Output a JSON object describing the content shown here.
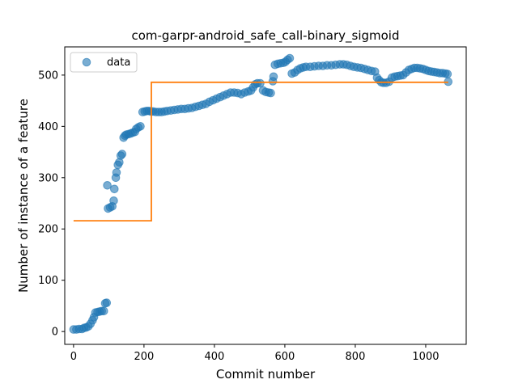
{
  "chart_data": {
    "type": "scatter",
    "title": "com-garpr-android_safe_call-binary_sigmoid",
    "xlabel": "Commit number",
    "ylabel": "Number of instance of a feature",
    "xlim": [
      -25,
      1115
    ],
    "ylim": [
      -25,
      555
    ],
    "xticks": [
      0,
      200,
      400,
      600,
      800,
      1000
    ],
    "yticks": [
      0,
      100,
      200,
      300,
      400,
      500
    ],
    "grid": false,
    "legend": {
      "placement": "top-left",
      "entries": [
        "data"
      ]
    },
    "colors": {
      "data": "#1f77b4",
      "fit": "#ff7f0e"
    },
    "series": [
      {
        "name": "data",
        "kind": "scatter",
        "points": [
          [
            0,
            4
          ],
          [
            8,
            4
          ],
          [
            16,
            5
          ],
          [
            24,
            5
          ],
          [
            30,
            7
          ],
          [
            36,
            8
          ],
          [
            42,
            10
          ],
          [
            48,
            15
          ],
          [
            54,
            22
          ],
          [
            58,
            28
          ],
          [
            62,
            37
          ],
          [
            68,
            38
          ],
          [
            74,
            39
          ],
          [
            80,
            40
          ],
          [
            86,
            40
          ],
          [
            90,
            55
          ],
          [
            94,
            56
          ],
          [
            96,
            285
          ],
          [
            98,
            240
          ],
          [
            104,
            242
          ],
          [
            110,
            244
          ],
          [
            114,
            255
          ],
          [
            116,
            278
          ],
          [
            120,
            300
          ],
          [
            122,
            310
          ],
          [
            126,
            325
          ],
          [
            130,
            330
          ],
          [
            134,
            343
          ],
          [
            138,
            346
          ],
          [
            142,
            378
          ],
          [
            146,
            382
          ],
          [
            150,
            384
          ],
          [
            156,
            385
          ],
          [
            162,
            386
          ],
          [
            168,
            388
          ],
          [
            174,
            389
          ],
          [
            178,
            395
          ],
          [
            184,
            398
          ],
          [
            190,
            400
          ],
          [
            196,
            428
          ],
          [
            202,
            429
          ],
          [
            208,
            430
          ],
          [
            214,
            430
          ],
          [
            220,
            429
          ],
          [
            226,
            429
          ],
          [
            234,
            428
          ],
          [
            242,
            428
          ],
          [
            250,
            428
          ],
          [
            258,
            429
          ],
          [
            266,
            430
          ],
          [
            276,
            431
          ],
          [
            286,
            432
          ],
          [
            296,
            433
          ],
          [
            306,
            434
          ],
          [
            316,
            434
          ],
          [
            326,
            435
          ],
          [
            336,
            436
          ],
          [
            346,
            438
          ],
          [
            356,
            440
          ],
          [
            366,
            442
          ],
          [
            376,
            444
          ],
          [
            386,
            448
          ],
          [
            396,
            451
          ],
          [
            406,
            454
          ],
          [
            416,
            457
          ],
          [
            426,
            460
          ],
          [
            436,
            463
          ],
          [
            446,
            466
          ],
          [
            456,
            466
          ],
          [
            466,
            465
          ],
          [
            476,
            463
          ],
          [
            486,
            466
          ],
          [
            496,
            468
          ],
          [
            504,
            470
          ],
          [
            510,
            476
          ],
          [
            516,
            482
          ],
          [
            522,
            484
          ],
          [
            530,
            484
          ],
          [
            538,
            470
          ],
          [
            546,
            467
          ],
          [
            554,
            466
          ],
          [
            560,
            465
          ],
          [
            566,
            488
          ],
          [
            568,
            497
          ],
          [
            572,
            520
          ],
          [
            580,
            522
          ],
          [
            588,
            523
          ],
          [
            596,
            524
          ],
          [
            602,
            526
          ],
          [
            608,
            530
          ],
          [
            614,
            533
          ],
          [
            620,
            503
          ],
          [
            628,
            505
          ],
          [
            636,
            510
          ],
          [
            644,
            513
          ],
          [
            652,
            515
          ],
          [
            660,
            516
          ],
          [
            672,
            516
          ],
          [
            684,
            517
          ],
          [
            696,
            518
          ],
          [
            708,
            518
          ],
          [
            720,
            519
          ],
          [
            732,
            519
          ],
          [
            744,
            520
          ],
          [
            756,
            521
          ],
          [
            766,
            521
          ],
          [
            776,
            520
          ],
          [
            786,
            518
          ],
          [
            796,
            516
          ],
          [
            806,
            515
          ],
          [
            816,
            514
          ],
          [
            826,
            512
          ],
          [
            836,
            510
          ],
          [
            846,
            508
          ],
          [
            856,
            507
          ],
          [
            862,
            495
          ],
          [
            868,
            490
          ],
          [
            874,
            486
          ],
          [
            880,
            485
          ],
          [
            888,
            485
          ],
          [
            896,
            487
          ],
          [
            904,
            495
          ],
          [
            912,
            497
          ],
          [
            920,
            498
          ],
          [
            928,
            499
          ],
          [
            936,
            500
          ],
          [
            944,
            505
          ],
          [
            952,
            510
          ],
          [
            960,
            512
          ],
          [
            968,
            514
          ],
          [
            976,
            514
          ],
          [
            984,
            513
          ],
          [
            992,
            512
          ],
          [
            1000,
            510
          ],
          [
            1008,
            508
          ],
          [
            1016,
            507
          ],
          [
            1024,
            506
          ],
          [
            1032,
            505
          ],
          [
            1040,
            504
          ],
          [
            1048,
            504
          ],
          [
            1056,
            503
          ],
          [
            1062,
            502
          ],
          [
            1064,
            487
          ]
        ]
      },
      {
        "name": "",
        "kind": "step-line",
        "points": [
          [
            0,
            216
          ],
          [
            221,
            216
          ],
          [
            221,
            486
          ],
          [
            1064,
            486
          ]
        ]
      }
    ]
  }
}
